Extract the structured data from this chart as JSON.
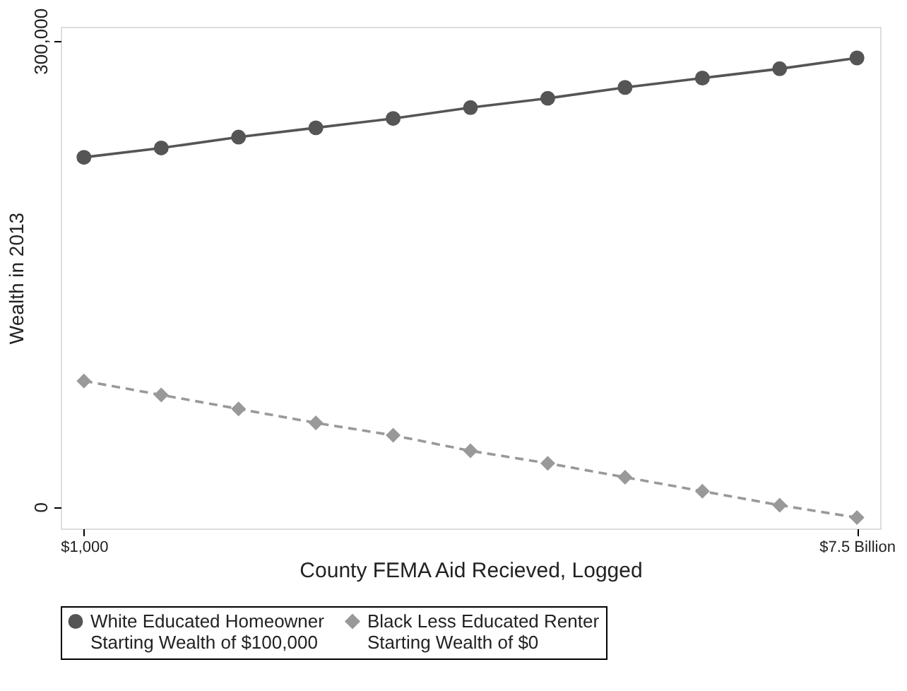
{
  "chart_data": {
    "type": "line",
    "xlabel": "County FEMA Aid Recieved, Logged",
    "ylabel": "Wealth in 2013",
    "categories": [
      "$1,000",
      null,
      null,
      null,
      null,
      null,
      null,
      null,
      null,
      null,
      "$7.5 Billion"
    ],
    "series": [
      {
        "name": "White Educated Homeowner\nStarting Wealth of $100,000",
        "color": "#555555",
        "marker": "circle",
        "line_style": "solid",
        "values": [
          225000,
          231000,
          238000,
          244000,
          250000,
          257000,
          263000,
          270000,
          276000,
          282000,
          289000
        ]
      },
      {
        "name": "Black Less Educated Renter\nStarting Wealth of $0",
        "color": "#999999",
        "marker": "diamond",
        "line_style": "dashed",
        "values": [
          81000,
          72000,
          63000,
          54000,
          46000,
          36000,
          28000,
          19000,
          10000,
          1000,
          -7000
        ]
      }
    ],
    "ylim": [
      -14000,
      309000
    ],
    "yticks": [
      0,
      {
        "value": 300000,
        "label": "300,000"
      }
    ],
    "grid": false,
    "legend": "bottom"
  }
}
